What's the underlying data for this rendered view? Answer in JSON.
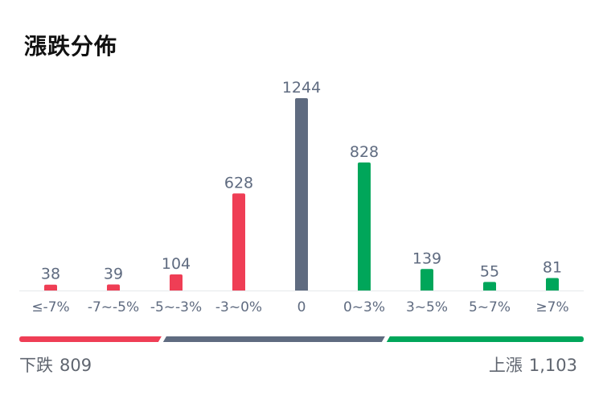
{
  "title": "漲跌分佈",
  "colors": {
    "down": "#ef3e55",
    "flat": "#5f6b80",
    "up": "#00a65a",
    "label": "#5f6b80",
    "baseline": "#e6e8eb"
  },
  "chart_data": {
    "type": "bar",
    "categories": [
      "≤-7%",
      "-7~-5%",
      "-5~-3%",
      "-3~0%",
      "0",
      "0~3%",
      "3~5%",
      "5~7%",
      "≥7%"
    ],
    "values": [
      38,
      39,
      104,
      628,
      1244,
      828,
      139,
      55,
      81
    ],
    "groups": [
      "down",
      "down",
      "down",
      "down",
      "flat",
      "up",
      "up",
      "up",
      "up"
    ],
    "ylim": [
      0,
      1244
    ],
    "grid": false
  },
  "summary": {
    "down_label": "下跌",
    "down_count": "809",
    "up_label": "上漲",
    "up_count": "1,103"
  }
}
